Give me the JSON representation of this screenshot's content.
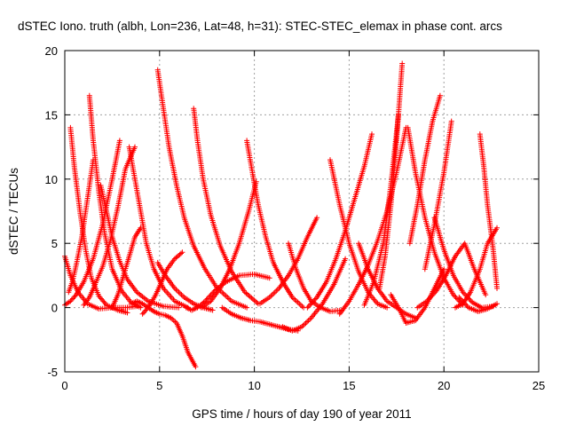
{
  "chart_data": {
    "type": "scatter",
    "title": "dSTEC Iono. truth (albh, Lon=236, Lat=48, h=31): STEC-STEC_elemax in phase cont. arcs",
    "xlabel": "GPS time / hours of day 190 of year 2011",
    "ylabel": "dSTEC  / TECUs",
    "xlim": [
      0,
      25
    ],
    "ylim": [
      -5,
      20
    ],
    "x_ticks": [
      "0",
      "5",
      "10",
      "15",
      "20",
      "25"
    ],
    "y_ticks": [
      "-5",
      "0",
      "5",
      "10",
      "15",
      "20"
    ],
    "grid": true,
    "marker": "plus",
    "color": "#ff0000",
    "series": [
      {
        "x": [
          0.0,
          0.3,
          0.7,
          1.2,
          1.8,
          2.5,
          3.2,
          3.8
        ],
        "y": [
          4.0,
          2.5,
          1.2,
          0.3,
          -0.1,
          0.0,
          0.0,
          0.1
        ]
      },
      {
        "x": [
          0.0,
          0.3,
          0.6,
          1.0,
          1.5,
          2.0,
          2.5,
          2.9
        ],
        "y": [
          0.2,
          0.5,
          1.0,
          2.0,
          3.8,
          6.5,
          10.0,
          13.0
        ]
      },
      {
        "x": [
          0.3,
          0.5,
          0.8,
          1.1,
          1.4,
          1.8,
          2.2,
          2.8,
          3.3
        ],
        "y": [
          14.0,
          11.0,
          7.5,
          4.5,
          2.3,
          0.9,
          0.2,
          -0.2,
          -0.4
        ]
      },
      {
        "x": [
          0.2,
          0.4,
          0.6,
          0.9,
          1.2,
          1.5
        ],
        "y": [
          1.2,
          2.0,
          3.3,
          5.5,
          8.5,
          11.5
        ]
      },
      {
        "x": [
          1.3,
          1.5,
          1.8,
          2.1,
          2.5,
          3.0,
          3.5,
          4.0
        ],
        "y": [
          16.5,
          13.0,
          9.0,
          5.8,
          3.0,
          1.3,
          0.4,
          0.0
        ]
      },
      {
        "x": [
          1.0,
          1.3,
          1.6,
          2.0,
          2.4,
          2.8,
          3.2,
          3.7
        ],
        "y": [
          0.2,
          0.8,
          1.8,
          3.2,
          5.2,
          7.8,
          10.8,
          12.5
        ]
      },
      {
        "x": [
          1.9,
          2.2,
          2.5,
          2.9,
          3.3,
          3.8,
          4.4,
          5.2,
          6.0
        ],
        "y": [
          9.5,
          7.5,
          5.5,
          3.6,
          2.2,
          1.2,
          0.5,
          0.1,
          0.0
        ]
      },
      {
        "x": [
          3.4,
          3.7,
          4.0,
          4.3,
          4.7,
          5.2,
          5.8,
          6.5
        ],
        "y": [
          12.5,
          10.0,
          7.5,
          5.0,
          3.0,
          1.5,
          0.5,
          0.0
        ]
      },
      {
        "x": [
          2.5,
          2.8,
          3.1,
          3.4,
          3.7,
          4.0
        ],
        "y": [
          0.0,
          1.0,
          2.5,
          4.0,
          5.5,
          6.2
        ]
      },
      {
        "x": [
          3.5,
          3.8,
          4.1,
          4.4,
          4.7,
          5.0,
          5.3,
          5.6,
          5.9,
          6.2,
          6.5,
          6.9
        ],
        "y": [
          0.3,
          0.5,
          0.3,
          0.0,
          -0.3,
          -0.5,
          -0.6,
          -0.8,
          -1.2,
          -2.2,
          -3.5,
          -4.6
        ]
      },
      {
        "x": [
          4.1,
          4.4,
          4.8,
          5.1,
          5.4,
          5.8,
          6.2
        ],
        "y": [
          -0.5,
          0.0,
          1.0,
          2.0,
          3.0,
          3.8,
          4.3
        ]
      },
      {
        "x": [
          4.9,
          5.3,
          5.8,
          6.3,
          6.8,
          7.3,
          7.8
        ],
        "y": [
          3.5,
          2.5,
          1.5,
          0.8,
          0.3,
          0.0,
          -0.2
        ]
      },
      {
        "x": [
          4.9,
          5.2,
          5.5,
          5.9,
          6.3,
          6.8,
          7.4,
          8.0,
          8.8,
          9.6
        ],
        "y": [
          18.5,
          15.5,
          12.5,
          9.5,
          7.0,
          4.8,
          3.0,
          1.6,
          0.5,
          0.0
        ]
      },
      {
        "x": [
          6.8,
          7.0,
          7.3,
          7.7,
          8.2,
          8.8,
          9.5,
          10.2
        ],
        "y": [
          15.5,
          13.0,
          10.0,
          7.2,
          4.8,
          2.8,
          1.2,
          0.3
        ]
      },
      {
        "x": [
          6.4,
          6.7,
          7.0,
          7.4,
          7.9,
          8.5,
          9.2,
          10.0,
          10.8
        ],
        "y": [
          0.0,
          -0.2,
          0.0,
          0.5,
          1.3,
          2.0,
          2.5,
          2.6,
          2.3
        ]
      },
      {
        "x": [
          7.2,
          7.7,
          8.2,
          8.7,
          9.2,
          9.7,
          10.1
        ],
        "y": [
          0.0,
          0.5,
          1.5,
          3.0,
          5.0,
          7.5,
          9.8
        ]
      },
      {
        "x": [
          9.6,
          9.9,
          10.2,
          10.6,
          11.0,
          11.5,
          12.0,
          12.6
        ],
        "y": [
          13.0,
          10.5,
          8.0,
          5.5,
          3.5,
          2.0,
          0.8,
          0.0
        ]
      },
      {
        "x": [
          8.3,
          8.8,
          9.3,
          9.8,
          10.3,
          10.8,
          11.3,
          11.8,
          12.3
        ],
        "y": [
          0.0,
          -0.5,
          -0.8,
          -1.0,
          -1.1,
          -1.3,
          -1.5,
          -1.7,
          -1.8
        ]
      },
      {
        "x": [
          10.3,
          10.8,
          11.3,
          11.8,
          12.3,
          12.8,
          13.3
        ],
        "y": [
          0.3,
          0.8,
          1.5,
          2.5,
          3.8,
          5.5,
          7.0
        ]
      },
      {
        "x": [
          11.8,
          12.2,
          12.6,
          13.0,
          13.5,
          14.0,
          14.6
        ],
        "y": [
          5.0,
          3.0,
          1.5,
          0.5,
          0.0,
          -0.3,
          -0.2
        ]
      },
      {
        "x": [
          11.5,
          12.0,
          12.5,
          13.0,
          13.6,
          14.2,
          14.8
        ],
        "y": [
          -1.5,
          -1.8,
          -1.5,
          -0.8,
          0.3,
          1.8,
          3.8
        ]
      },
      {
        "x": [
          12.8,
          13.3,
          13.8,
          14.3,
          14.8,
          15.3,
          15.8,
          16.2
        ],
        "y": [
          0.0,
          0.8,
          2.0,
          3.8,
          6.0,
          8.5,
          11.0,
          13.5
        ]
      },
      {
        "x": [
          14.0,
          14.5,
          15.0,
          15.5,
          16.0,
          16.5,
          17.0
        ],
        "y": [
          11.5,
          8.0,
          5.0,
          2.8,
          1.2,
          0.3,
          0.0
        ]
      },
      {
        "x": [
          15.5,
          16.0,
          16.5,
          17.0,
          17.5,
          18.0,
          18.5
        ],
        "y": [
          5.0,
          3.0,
          1.5,
          0.5,
          0.0,
          -0.5,
          -0.8
        ]
      },
      {
        "x": [
          14.5,
          15.0,
          15.5,
          16.0,
          16.5,
          17.0,
          17.5,
          18.0
        ],
        "y": [
          -0.5,
          0.5,
          1.8,
          3.3,
          5.2,
          7.5,
          10.5,
          14.0
        ]
      },
      {
        "x": [
          15.8,
          16.3,
          16.8,
          17.2,
          17.6
        ],
        "y": [
          0.2,
          2.0,
          5.0,
          9.5,
          15.0
        ]
      },
      {
        "x": [
          16.6,
          16.9,
          17.2,
          17.5,
          17.8
        ],
        "y": [
          1.5,
          4.0,
          8.0,
          13.0,
          19.0
        ]
      },
      {
        "x": [
          17.2,
          17.6,
          18.0,
          18.5,
          19.0,
          19.5,
          20.0
        ],
        "y": [
          1.0,
          0.0,
          -1.2,
          -1.0,
          0.0,
          1.5,
          3.0
        ]
      },
      {
        "x": [
          18.1,
          18.5,
          19.0,
          19.5,
          20.0,
          20.5,
          21.0
        ],
        "y": [
          14.0,
          10.5,
          7.0,
          4.3,
          2.3,
          1.0,
          0.2
        ]
      },
      {
        "x": [
          18.6,
          19.1,
          19.6,
          20.1,
          20.6,
          21.1,
          21.6,
          22.2
        ],
        "y": [
          0.0,
          0.5,
          1.3,
          2.5,
          4.0,
          5.0,
          3.0,
          1.0
        ]
      },
      {
        "x": [
          18.2,
          18.6,
          19.0,
          19.4,
          19.8
        ],
        "y": [
          5.0,
          8.0,
          11.5,
          14.5,
          16.5
        ]
      },
      {
        "x": [
          19.5,
          20.0,
          20.5,
          21.0,
          21.5,
          22.0,
          22.6
        ],
        "y": [
          7.0,
          4.5,
          2.5,
          1.2,
          0.4,
          0.0,
          0.1
        ]
      },
      {
        "x": [
          19.0,
          19.5,
          20.0,
          20.4
        ],
        "y": [
          3.0,
          6.5,
          10.5,
          14.5
        ]
      },
      {
        "x": [
          20.6,
          21.0,
          21.4,
          21.9,
          22.3,
          22.8
        ],
        "y": [
          0.0,
          0.3,
          1.2,
          3.0,
          5.0,
          6.2
        ]
      },
      {
        "x": [
          21.9,
          22.1,
          22.3,
          22.6,
          22.8
        ],
        "y": [
          13.5,
          11.0,
          8.0,
          4.5,
          1.5
        ]
      },
      {
        "x": [
          20.8,
          21.3,
          21.8,
          22.3,
          22.8
        ],
        "y": [
          0.8,
          0.0,
          -0.3,
          -0.1,
          0.3
        ]
      }
    ]
  }
}
